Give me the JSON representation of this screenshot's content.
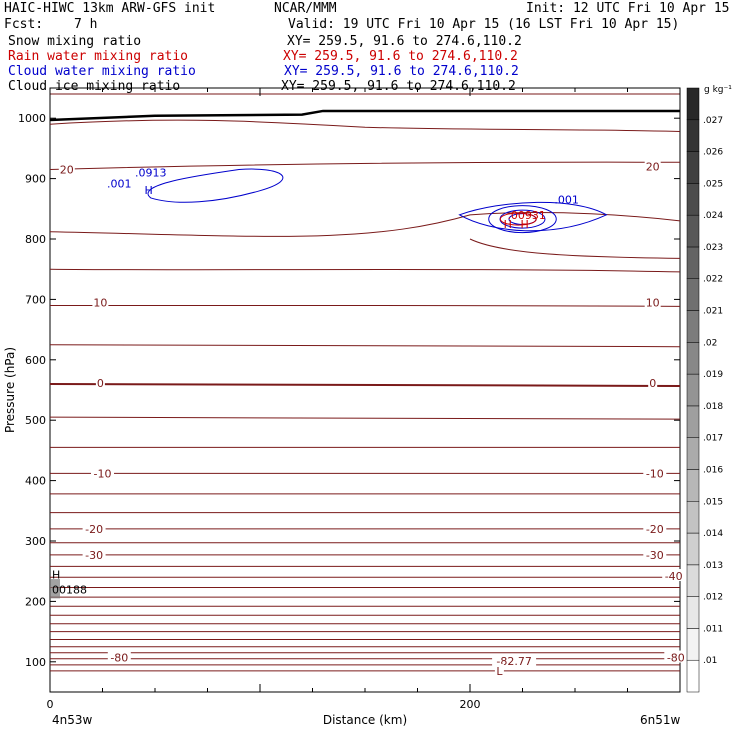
{
  "header": {
    "title_left": "HAIC-HIWC 13km ARW-GFS init",
    "org": "NCAR/MMM",
    "init": "Init: 12 UTC Fri 10 Apr 15",
    "fcst_label": "Fcst:",
    "fcst_value": "7 h",
    "valid": "Valid: 19 UTC Fri 10 Apr 15 (16 LST Fri 10 Apr 15)"
  },
  "fields": [
    {
      "label": "Snow mixing ratio",
      "xy": "XY= 259.5, 91.6 to 274.6,110.2",
      "color": "#000000"
    },
    {
      "label": "Rain water mixing ratio",
      "xy": "XY= 259.5, 91.6 to 274.6,110.2",
      "color": "#cc0000"
    },
    {
      "label": "Cloud water mixing ratio",
      "xy": "XY= 259.5, 91.6 to 274.6,110.2",
      "color": "#0000cc"
    },
    {
      "label": "Cloud ice mixing ratio",
      "xy": "XY= 259.5, 91.6 to 274.6,110.2",
      "color": "#000000"
    }
  ],
  "chart_data": {
    "type": "heatmap",
    "title": "",
    "xlabel": "Distance (km)",
    "ylabel": "Pressure (hPa)",
    "xlim": [
      0,
      300
    ],
    "ylim": [
      1050,
      50
    ],
    "x_ticks": [
      {
        "value": 0,
        "label": "0"
      },
      {
        "value": 200,
        "label": "200"
      }
    ],
    "y_ticks": [
      {
        "value": 100,
        "label": "100"
      },
      {
        "value": 200,
        "label": "200"
      },
      {
        "value": 300,
        "label": "300"
      },
      {
        "value": 400,
        "label": "400"
      },
      {
        "value": 500,
        "label": "500"
      },
      {
        "value": 600,
        "label": "600"
      },
      {
        "value": 700,
        "label": "700"
      },
      {
        "value": 800,
        "label": "800"
      },
      {
        "value": 900,
        "label": "900"
      },
      {
        "value": 1000,
        "label": "1000"
      }
    ],
    "endpoints": {
      "left": "4n53w",
      "right": "6n51w"
    },
    "colorbar": {
      "unit": "g kg⁻¹",
      "levels": [
        ".01",
        ".011",
        ".012",
        ".013",
        ".014",
        ".015",
        ".016",
        ".017",
        ".018",
        ".019",
        ".02",
        ".021",
        ".022",
        ".023",
        ".024",
        ".025",
        ".026",
        ".027"
      ]
    },
    "isotherm_color": "#7a1a1a",
    "isotherm_pressures": [
      85,
      95,
      105,
      115,
      125,
      137,
      150,
      163,
      177,
      192,
      207,
      223,
      240,
      258,
      277,
      297,
      320,
      347,
      378,
      412,
      455,
      505,
      560,
      625,
      690,
      750
    ],
    "isotherm_labels": [
      {
        "text": "-80",
        "x": 33,
        "p": 107
      },
      {
        "text": "-80",
        "x": 298,
        "p": 107
      },
      {
        "text": "-82.77",
        "x": 221,
        "p": 101
      },
      {
        "text": "L",
        "x": 214,
        "p": 85
      },
      {
        "text": "-40",
        "x": 297,
        "p": 242
      },
      {
        "text": "-30",
        "x": 21,
        "p": 277
      },
      {
        "text": "-30",
        "x": 288,
        "p": 277
      },
      {
        "text": "-20",
        "x": 21,
        "p": 320
      },
      {
        "text": "-20",
        "x": 288,
        "p": 320
      },
      {
        "text": "-10",
        "x": 25,
        "p": 412
      },
      {
        "text": "-10",
        "x": 288,
        "p": 412
      },
      {
        "text": "0",
        "x": 24,
        "p": 562
      },
      {
        "text": "0",
        "x": 287,
        "p": 562
      },
      {
        "text": "10",
        "x": 24,
        "p": 695
      },
      {
        "text": "10",
        "x": 287,
        "p": 695
      },
      {
        "text": "20",
        "x": 8,
        "p": 915
      },
      {
        "text": "20",
        "x": 287,
        "p": 920
      }
    ],
    "snow_max": {
      "h": "H",
      "value": "00188",
      "x": 0,
      "p": 225
    },
    "cloud_water_labels": [
      {
        "text": ".001",
        "x": 33,
        "p": 892
      },
      {
        "text": "H",
        "x": 47,
        "p": 881
      },
      {
        "text": ".0913",
        "x": 48,
        "p": 910
      },
      {
        "text": ".001",
        "x": 246,
        "p": 865
      }
    ],
    "rain_labels": [
      {
        "text": "H",
        "x": 218,
        "p": 825
      },
      {
        "text": "H",
        "x": 226,
        "p": 825
      },
      {
        "text": ".00931",
        "x": 227,
        "p": 840
      }
    ]
  }
}
